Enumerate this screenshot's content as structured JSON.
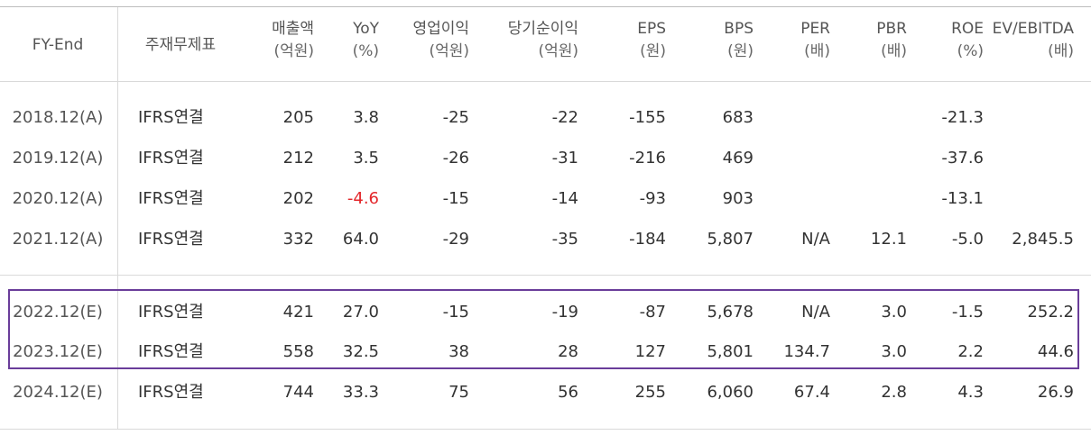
{
  "table": {
    "headers": [
      {
        "key": "fy",
        "line1": "FY-End",
        "line2": ""
      },
      {
        "key": "acct",
        "line1": "주재무제표",
        "line2": ""
      },
      {
        "key": "sales",
        "line1": "매출액",
        "line2": "(억원)"
      },
      {
        "key": "yoy",
        "line1": "YoY",
        "line2": "(%)"
      },
      {
        "key": "op",
        "line1": "영업이익",
        "line2": "(억원)"
      },
      {
        "key": "net",
        "line1": "당기순이익",
        "line2": "(억원)"
      },
      {
        "key": "eps",
        "line1": "EPS",
        "line2": "(원)"
      },
      {
        "key": "bps",
        "line1": "BPS",
        "line2": "(원)"
      },
      {
        "key": "per",
        "line1": "PER",
        "line2": "(배)"
      },
      {
        "key": "pbr",
        "line1": "PBR",
        "line2": "(배)"
      },
      {
        "key": "roe",
        "line1": "ROE",
        "line2": "(%)"
      },
      {
        "key": "ev",
        "line1": "EV/EBITDA",
        "line2": "(배)"
      }
    ],
    "rows": [
      {
        "fy": "2018.12(A)",
        "acct": "IFRS연결",
        "sales": "205",
        "yoy": "3.8",
        "op": "-25",
        "net": "-22",
        "eps": "-155",
        "bps": "683",
        "per": "",
        "pbr": "",
        "roe": "-21.3",
        "ev": ""
      },
      {
        "fy": "2019.12(A)",
        "acct": "IFRS연결",
        "sales": "212",
        "yoy": "3.5",
        "op": "-26",
        "net": "-31",
        "eps": "-216",
        "bps": "469",
        "per": "",
        "pbr": "",
        "roe": "-37.6",
        "ev": ""
      },
      {
        "fy": "2020.12(A)",
        "acct": "IFRS연결",
        "sales": "202",
        "yoy": "-4.6",
        "op": "-15",
        "net": "-14",
        "eps": "-93",
        "bps": "903",
        "per": "",
        "pbr": "",
        "roe": "-13.1",
        "ev": ""
      },
      {
        "fy": "2021.12(A)",
        "acct": "IFRS연결",
        "sales": "332",
        "yoy": "64.0",
        "op": "-29",
        "net": "-35",
        "eps": "-184",
        "bps": "5,807",
        "per": "N/A",
        "pbr": "12.1",
        "roe": "-5.0",
        "ev": "2,845.5"
      },
      {
        "fy": "2022.12(E)",
        "acct": "IFRS연결",
        "sales": "421",
        "yoy": "27.0",
        "op": "-15",
        "net": "-19",
        "eps": "-87",
        "bps": "5,678",
        "per": "N/A",
        "pbr": "3.0",
        "roe": "-1.5",
        "ev": "252.2"
      },
      {
        "fy": "2023.12(E)",
        "acct": "IFRS연결",
        "sales": "558",
        "yoy": "32.5",
        "op": "38",
        "net": "28",
        "eps": "127",
        "bps": "5,801",
        "per": "134.7",
        "pbr": "3.0",
        "roe": "2.2",
        "ev": "44.6"
      },
      {
        "fy": "2024.12(E)",
        "acct": "IFRS연결",
        "sales": "744",
        "yoy": "33.3",
        "op": "75",
        "net": "56",
        "eps": "255",
        "bps": "6,060",
        "per": "67.4",
        "pbr": "2.8",
        "roe": "4.3",
        "ev": "26.9"
      }
    ]
  },
  "colors": {
    "highlight_border": "#6a3d9a",
    "negative_yoy": "#e3262a"
  }
}
